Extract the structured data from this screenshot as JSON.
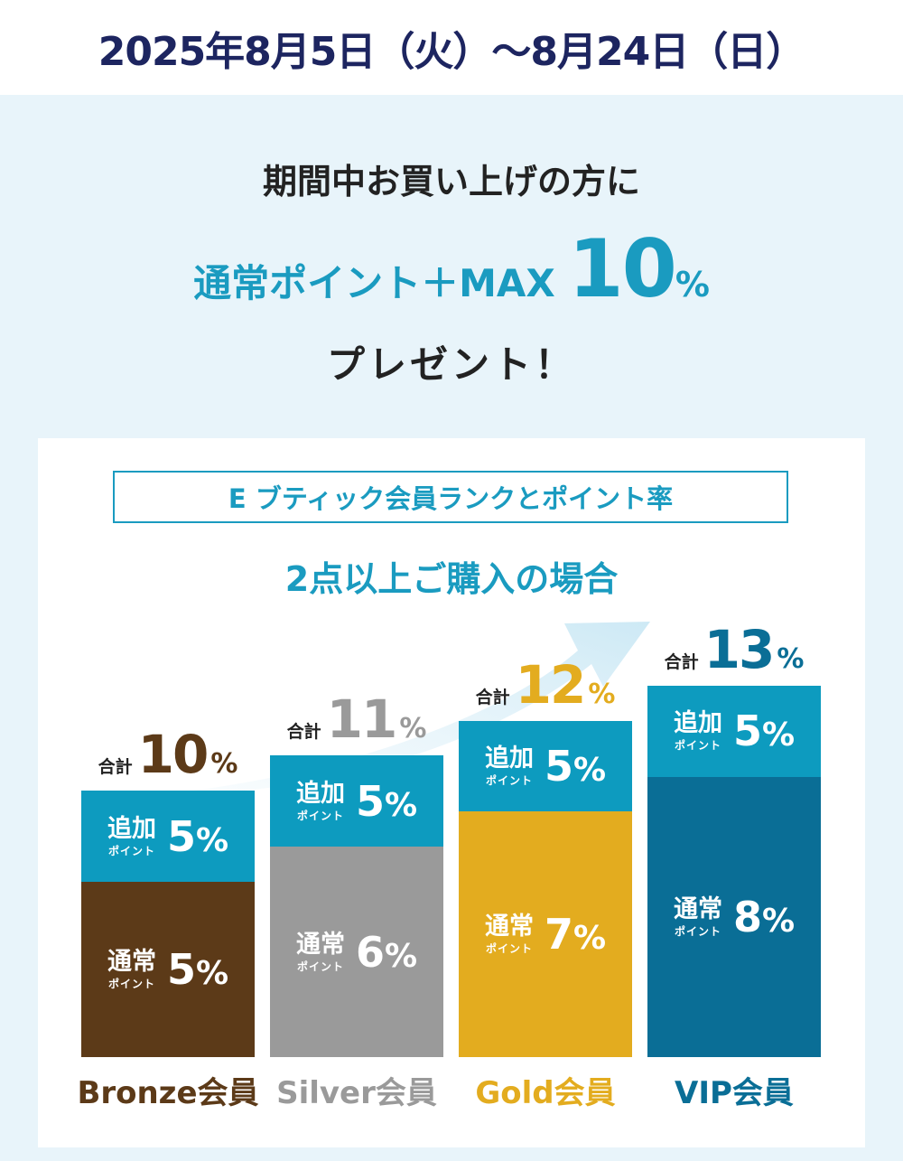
{
  "header": {
    "date_range": "2025年8月5日（火）～8月24日（日）"
  },
  "promo": {
    "line1": "期間中お買い上げの方に",
    "line2_lead": "通常ポイント＋MAX ",
    "line2_value": "10",
    "line2_unit": "%",
    "line3": "プレゼント！"
  },
  "panel": {
    "rank_title": "E ブティック会員ランクとポイント率",
    "condition": "2点以上ご購入の場合"
  },
  "labels": {
    "total": "合計",
    "bonus": "追加",
    "regular": "通常",
    "point_sub": "ポイント",
    "unit": "%"
  },
  "colors": {
    "bonus": "#0d9bbf",
    "bronze": "#5c3a18",
    "silver": "#9a9a9a",
    "gold": "#e3ac1f",
    "vip": "#0a6e96",
    "vip_total": "#0a6e96",
    "accent": "#1a9bc0"
  },
  "chart_data": {
    "type": "bar",
    "stacked": true,
    "categories": [
      "Bronze会員",
      "Silver会員",
      "Gold会員",
      "VIP会員"
    ],
    "series": [
      {
        "name": "通常ポイント",
        "values": [
          5,
          6,
          7,
          8
        ]
      },
      {
        "name": "追加ポイント",
        "values": [
          5,
          5,
          5,
          5
        ]
      }
    ],
    "totals": [
      10,
      11,
      12,
      13
    ],
    "title": "2点以上ご購入の場合",
    "ylim": [
      0,
      13
    ]
  }
}
